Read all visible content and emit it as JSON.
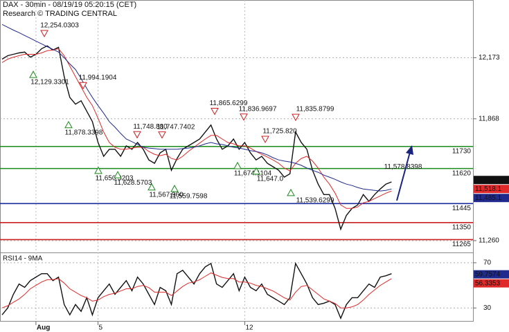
{
  "chart_data": [
    {
      "type": "line",
      "title": "DAX - 30min - 08/19/19 05:20:15 (CET)",
      "subtitle": "Research © TRADING CENTRAL",
      "categories": [
        null,
        null,
        null,
        null,
        null,
        null,
        "Aug",
        null,
        null,
        null,
        null,
        null,
        null,
        null,
        null,
        null,
        null,
        "5",
        null,
        null,
        null,
        null,
        null,
        null,
        null,
        null,
        null,
        null,
        null,
        null,
        null,
        null,
        null,
        null,
        null,
        null,
        null,
        null,
        null,
        null,
        null,
        null,
        null,
        "12",
        null,
        null,
        null,
        null,
        null,
        null,
        null,
        null,
        null,
        null,
        null,
        null,
        null,
        null,
        null,
        null,
        null,
        null,
        null,
        null,
        null,
        null,
        null,
        null,
        null,
        null
      ],
      "series": [
        {
          "color": "#111111",
          "values": [
            12166,
            12183,
            12190,
            12197,
            12201,
            12176,
            12190,
            12218,
            12232,
            12211,
            12225,
            12079,
            11975,
            11941,
            11958,
            11906,
            11854,
            11750,
            11681,
            11716,
            11716,
            11681,
            11733,
            11716,
            11750,
            11716,
            11663,
            11646,
            11698,
            11716,
            11611,
            11670,
            11716,
            11733,
            11750,
            11767,
            11802,
            11837,
            11767,
            11716,
            11733,
            11767,
            11716,
            11750,
            11698,
            11663,
            11681,
            11646,
            11629,
            11611,
            11577,
            11594,
            11802,
            11750,
            11716,
            11611,
            11542,
            11490,
            11490,
            11421,
            11317,
            11386,
            11421,
            11438,
            11490,
            11456,
            11490,
            11518,
            11542,
            11553
          ]
        },
        {
          "color": "#e02a2a",
          "values": [
            12149,
            12166,
            12176,
            12183,
            12190,
            12190,
            12190,
            12197,
            12208,
            12211,
            12218,
            12183,
            12131,
            12079,
            12027,
            11975,
            11934,
            11871,
            11802,
            11750,
            11726,
            11716,
            11716,
            11722,
            11726,
            11726,
            11705,
            11691,
            11684,
            11691,
            11670,
            11663,
            11681,
            11705,
            11726,
            11747,
            11767,
            11785,
            11785,
            11767,
            11750,
            11743,
            11733,
            11733,
            11722,
            11705,
            11691,
            11677,
            11663,
            11646,
            11622,
            11608,
            11646,
            11670,
            11681,
            11657,
            11622,
            11577,
            11542,
            11497,
            11438,
            11421,
            11421,
            11428,
            11449,
            11456,
            11470,
            11483,
            11497,
            11508
          ]
        },
        {
          "color": "#1f2a8c",
          "values": [
            12339,
            12325,
            12311,
            12298,
            12284,
            12270,
            12256,
            12242,
            12228,
            12215,
            12201,
            12173,
            12142,
            12114,
            12069,
            12020,
            11975,
            11934,
            11896,
            11854,
            11826,
            11795,
            11767,
            11754,
            11740,
            11726,
            11722,
            11719,
            11716,
            11716,
            11716,
            11716,
            11719,
            11722,
            11726,
            11733,
            11743,
            11750,
            11743,
            11740,
            11733,
            11726,
            11722,
            11716,
            11709,
            11705,
            11698,
            11688,
            11674,
            11663,
            11657,
            11653,
            11646,
            11636,
            11622,
            11611,
            11601,
            11587,
            11577,
            11566,
            11553,
            11542,
            11535,
            11525,
            11518,
            11514,
            11511,
            11508,
            11511,
            11518
          ]
        }
      ],
      "ylim": [
        11201,
        12461
      ],
      "yticks": [
        {
          "value": 12173,
          "label": "12,173"
        },
        {
          "value": 11868,
          "label": "11,868"
        },
        {
          "value": 11260,
          "label": "11,260"
        }
      ],
      "grid": true,
      "levels": [
        {
          "value": 11730,
          "color": "#1a8a1a"
        },
        {
          "value": 11620,
          "color": "#1a8a1a"
        },
        {
          "value": 11445,
          "color": "#1a2a9a"
        },
        {
          "value": 11350,
          "color": "#c82020"
        },
        {
          "value": 11265,
          "color": "#c82020"
        }
      ],
      "annotations": [
        {
          "label": "12,254.0303",
          "value": 12254.0303,
          "marker": "down"
        },
        {
          "label": "12,129.3301",
          "value": 12129.3301,
          "marker": "up"
        },
        {
          "label": "11,994.1904",
          "value": 11994.1904,
          "marker": "down"
        },
        {
          "label": "11,878.3398",
          "value": 11878.3398,
          "marker": "up"
        },
        {
          "label": "11,748.880",
          "value": 11748.88,
          "marker": "down"
        },
        {
          "label": "11,747.7402",
          "value": 11747.7402,
          "marker": "down"
        },
        {
          "label": "11,650.3203",
          "value": 11650.3203,
          "marker": "up"
        },
        {
          "label": "11,628.5703",
          "value": 11628.5703,
          "marker": "up"
        },
        {
          "label": "11,567.960",
          "value": 11567.96,
          "marker": "up"
        },
        {
          "label": "11,559.7598",
          "value": 11559.7598,
          "marker": "up"
        },
        {
          "label": "11,865.6299",
          "value": 11865.6299,
          "marker": "down"
        },
        {
          "label": "11,836.9697",
          "value": 11836.9697,
          "marker": "down"
        },
        {
          "label": "11,835.8799",
          "value": 11835.8799,
          "marker": "down"
        },
        {
          "label": "11,725.820",
          "value": 11725.82,
          "marker": "down"
        },
        {
          "label": "11,674.1104",
          "value": 11674.1104,
          "marker": "up"
        },
        {
          "label": "11,647.0",
          "value": 11647.0,
          "marker": "up"
        },
        {
          "label": "11,539.6299",
          "value": 11539.6299,
          "marker": "up"
        },
        {
          "label": "11,578.8398",
          "value": 11578.8398,
          "marker": "none"
        }
      ],
      "last_labels": [
        {
          "label": "11,562.7",
          "value": 11562.7,
          "color": "#111111"
        },
        {
          "label": "11,518.1",
          "value": 11518.1,
          "color": "#e02a2a"
        },
        {
          "label": "11,485.1",
          "value": 11485.1,
          "color": "#1f2a8c"
        }
      ]
    },
    {
      "type": "line",
      "title": "RSI14 - 9MA",
      "series": [
        {
          "color": "#111111",
          "values": [
            23.9,
            30.0,
            42.1,
            51.2,
            48.2,
            54.2,
            57.3,
            60.3,
            60.3,
            54.2,
            57.3,
            33.0,
            23.9,
            33.0,
            27.0,
            39.1,
            23.9,
            39.1,
            45.2,
            51.2,
            42.1,
            48.2,
            54.2,
            45.2,
            57.3,
            51.2,
            42.1,
            33.0,
            48.2,
            45.2,
            33.0,
            60.3,
            63.3,
            57.3,
            51.2,
            60.3,
            66.4,
            69.4,
            51.2,
            48.2,
            54.2,
            60.3,
            45.2,
            57.3,
            48.2,
            45.2,
            51.2,
            42.1,
            39.1,
            36.1,
            33.0,
            39.1,
            69.4,
            60.3,
            51.2,
            39.1,
            33.0,
            34.2,
            36.1,
            33.0,
            20.9,
            33.0,
            39.1,
            39.1,
            45.2,
            51.2,
            48.2,
            57.3,
            58.5,
            60.3
          ]
        },
        {
          "color": "#e02a2a",
          "values": [
            30,
            32,
            35,
            38,
            42,
            47,
            50,
            53,
            55,
            55,
            56,
            52,
            47,
            44,
            41,
            39,
            36,
            37,
            40,
            42,
            43,
            45,
            47,
            47,
            49,
            50,
            48,
            44,
            44,
            44,
            41,
            45,
            49,
            52,
            53,
            55,
            58,
            61,
            59,
            57,
            56,
            56,
            53,
            53,
            52,
            50,
            49,
            47,
            45,
            42,
            39,
            37,
            44,
            49,
            50,
            46,
            42,
            38,
            36,
            34,
            30,
            30,
            31,
            33,
            37,
            42,
            46,
            50,
            53,
            56
          ]
        }
      ],
      "ylim": [
        17.9,
        78.5
      ],
      "yticks": [
        70,
        30
      ],
      "grid": true,
      "last_labels": [
        {
          "label": "59.7574",
          "value": 59.7574,
          "color": "#1f2a8c"
        },
        {
          "label": "56.3353",
          "value": 56.3353,
          "color": "#e02a2a"
        }
      ]
    }
  ]
}
